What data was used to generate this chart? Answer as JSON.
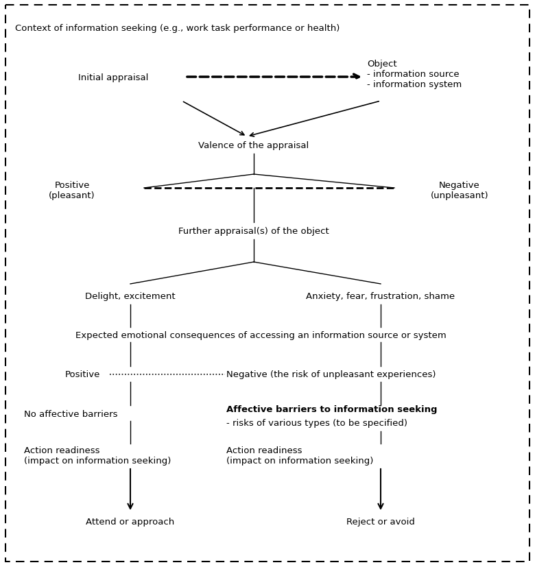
{
  "bg_color": "#ffffff",
  "border_color": "#000000",
  "figsize": [
    7.8,
    8.28
  ],
  "dpi": 100,
  "fs": 9.5,
  "context_text": "Context of information seeking (e.g., work task performance or health)",
  "initial_appraisal_text": "Initial appraisal",
  "object_text": "Object\n- information source\n- information system",
  "valence_text": "Valence of the appraisal",
  "positive1_text": "Positive\n(pleasant)",
  "negative1_text": "Negative\n(unpleasant)",
  "further_text": "Further appraisal(s) of the object",
  "delight_text": "Delight, excitement",
  "anxiety_text": "Anxiety, fear, frustration, shame",
  "expected_text": "Expected emotional consequences of accessing an information source or system",
  "positive2_text": "Positive",
  "negative2_text": "Negative (the risk of unpleasant experiences)",
  "no_barriers_text": "No affective barriers",
  "aff_barriers_bold": "Affective barriers to information seeking",
  "aff_barriers_normal": "- risks of various types (to be specified)",
  "action_ready1_text": "Action readiness\n(impact on information seeking)",
  "action_ready2_text": "Action readiness\n(impact on information seeking)",
  "attend_text": "Attend or approach",
  "reject_text": "Reject or avoid"
}
